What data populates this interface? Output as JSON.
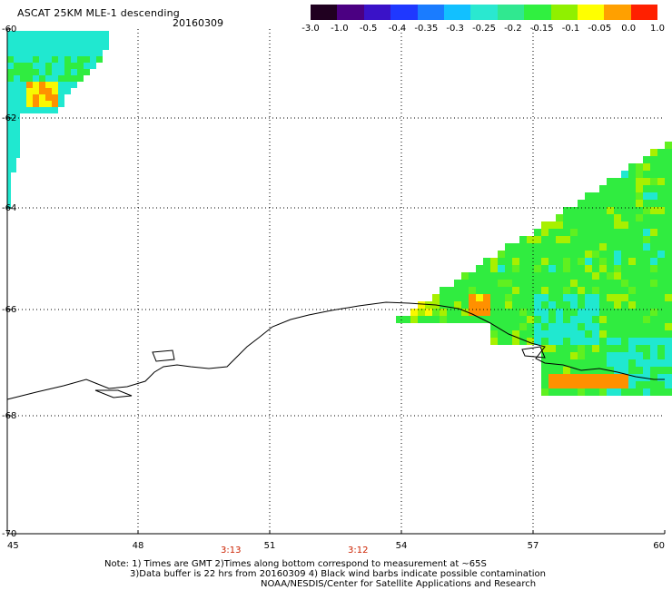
{
  "header": {
    "title": "ASCAT 25KM MLE-1 descending",
    "date": "20160309"
  },
  "colorbar": {
    "labels": [
      "-3.0",
      "-1.0",
      "-0.5",
      "-0.4",
      "-0.35",
      "-0.3",
      "-0.25",
      "-0.2",
      "-0.15",
      "-0.1",
      "-0.05",
      "0.0",
      "1.0"
    ],
    "colors": [
      "#200020",
      "#4b0082",
      "#3a12c8",
      "#1f38ff",
      "#1a7cff",
      "#12c0ff",
      "#2ae8d0",
      "#30e890",
      "#30f040",
      "#90f000",
      "#ffff00",
      "#ffa000",
      "#ff2000"
    ]
  },
  "axes": {
    "x_ticks": [
      "45",
      "48",
      "51",
      "54",
      "57",
      "60"
    ],
    "y_ticks": [
      "-60",
      "-62",
      "-64",
      "-66",
      "-68",
      "-70"
    ]
  },
  "time_labels": [
    "3:13",
    "3:12"
  ],
  "notes": {
    "line1": "Note: 1) Times are GMT 2)Times along bottom correspond to measurement at ~65S",
    "line2": "3)Data buffer is 22 hrs from 20160309 4) Black wind barbs indicate possible contamination",
    "line3": "NOAA/NESDIS/Center for Satellite Applications and Research"
  },
  "palette": {
    "cyan": "#20e8d0",
    "green": "#30ec40",
    "yellow_green": "#a8f000",
    "yellow": "#f8f800",
    "orange": "#ff9000",
    "blue": "#1878ff",
    "coast": "#000000",
    "grid": "#000000",
    "time_red": "#cc2200"
  }
}
